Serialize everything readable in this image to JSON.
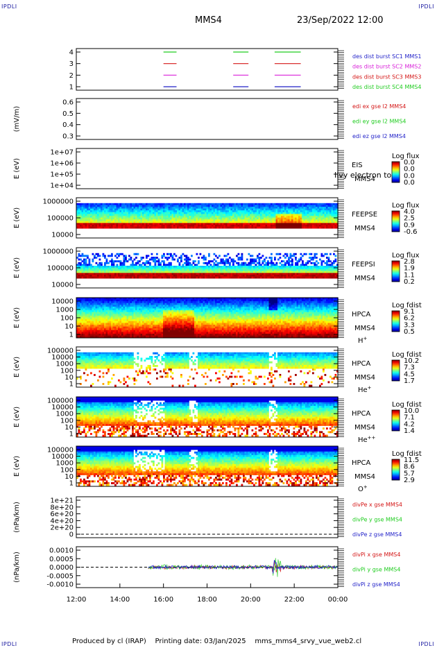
{
  "header": {
    "corner_label": "IPDLI",
    "spacecraft": "MMS4",
    "datetime": "23/Sep/2022 12:00"
  },
  "footer": {
    "produced": "Produced by cl (IRAP)",
    "printing": "Printing date: 03/Jan/2025",
    "file": "mms_mms4_srvy_vue_web2.cl"
  },
  "colors": {
    "mms1": "#1f1fc8",
    "mms2": "#d81fd8",
    "mms3": "#d41515",
    "mms4": "#1fcc1f"
  },
  "chart_data": {
    "type": "multi-panel time series",
    "x": {
      "ticks": [
        "12:00",
        "14:00",
        "16:00",
        "18:00",
        "20:00",
        "22:00",
        "00:00"
      ],
      "hours": [
        12,
        14,
        16,
        18,
        20,
        22,
        24
      ],
      "range_hours": [
        12,
        24
      ]
    },
    "panels": [
      {
        "id": "burst",
        "type": "interval bars",
        "yticks": [
          "4",
          "3",
          "2",
          "1"
        ],
        "ylabel": "",
        "legend": [
          {
            "text": "des dist burst SC1 MMS1",
            "color": "#1f1fc8"
          },
          {
            "text": "des dist burst SC2 MMS2",
            "color": "#d81fd8"
          },
          {
            "text": "des dist burst SC3 MMS3",
            "color": "#d41515"
          },
          {
            "text": "des dist burst SC4 MMS4",
            "color": "#1fcc1f"
          }
        ],
        "intervals_hours": [
          [
            16.0,
            16.6
          ],
          [
            19.2,
            19.9
          ],
          [
            21.1,
            22.3
          ]
        ]
      },
      {
        "id": "edi",
        "type": "line",
        "ylabel": "(mV/m)",
        "yticks": [
          "0.6",
          "0.5",
          "0.4",
          "0.3"
        ],
        "legend": [
          {
            "text": "edi ex gse l2 MMS4",
            "color": "#d41515"
          },
          {
            "text": "edi ey gse l2 MMS4",
            "color": "#1fcc1f"
          },
          {
            "text": "edi ez gse l2 MMS4",
            "color": "#1f1fc8"
          }
        ]
      },
      {
        "id": "eis",
        "type": "spectrogram",
        "ylabel": "E (eV)",
        "yticks": [
          "1e+07",
          "1e+06",
          "1e+05",
          "1e+04"
        ],
        "side": [
          "EIS",
          "MMS4"
        ],
        "overlay": "Ilvy electron to",
        "cbar_title": "Log flux",
        "cbar_ticks": [
          "0.0",
          "0.0",
          "0.0",
          "0.0"
        ]
      },
      {
        "id": "feepse",
        "type": "spectrogram",
        "ylabel": "E (eV)",
        "yticks": [
          "1000000",
          "100000",
          "10000"
        ],
        "side": [
          "FEEPSE",
          "MMS4"
        ],
        "cbar_title": "Log flux",
        "cbar_ticks": [
          "4.0",
          "2.5",
          "0.9",
          "-0.6"
        ]
      },
      {
        "id": "feepsi",
        "type": "spectrogram",
        "ylabel": "E (eV)",
        "yticks": [
          "1000000",
          "100000",
          "10000"
        ],
        "side": [
          "FEEPSI",
          "MMS4"
        ],
        "cbar_title": "Log flux",
        "cbar_ticks": [
          "2.8",
          "1.9",
          "1.1",
          "0.2"
        ]
      },
      {
        "id": "hpca_h",
        "type": "spectrogram",
        "ylabel": "E (eV)",
        "yticks": [
          "10000",
          "1000",
          "100",
          "10",
          "1"
        ],
        "side": [
          "HPCA",
          "MMS4"
        ],
        "species": "H",
        "charge": "+",
        "cbar_title": "Log fdist",
        "cbar_ticks": [
          "9.1",
          "6.2",
          "3.3",
          "0.5"
        ]
      },
      {
        "id": "hpca_he",
        "type": "spectrogram",
        "ylabel": "E (eV)",
        "yticks": [
          "100000",
          "10000",
          "1000",
          "100",
          "10",
          "1"
        ],
        "side": [
          "HPCA",
          "MMS4"
        ],
        "species": "He",
        "charge": "+",
        "cbar_title": "Log fdist",
        "cbar_ticks": [
          "10.2",
          "7.3",
          "4.5",
          "1.7"
        ]
      },
      {
        "id": "hpca_he2",
        "type": "spectrogram",
        "ylabel": "E (eV)",
        "yticks": [
          "100000",
          "10000",
          "1000",
          "100",
          "10",
          "1"
        ],
        "side": [
          "HPCA",
          "MMS4"
        ],
        "species": "He",
        "charge": "++",
        "cbar_title": "Log fdist",
        "cbar_ticks": [
          "10.0",
          "7.1",
          "4.2",
          "1.4"
        ]
      },
      {
        "id": "hpca_o",
        "type": "spectrogram",
        "ylabel": "E (eV)",
        "yticks": [
          "100000",
          "10000",
          "1000",
          "100",
          "10",
          "1"
        ],
        "side": [
          "HPCA",
          "MMS4"
        ],
        "species": "O",
        "charge": "+",
        "cbar_title": "Log fdist",
        "cbar_ticks": [
          "11.5",
          "8.6",
          "5.7",
          "2.9"
        ]
      },
      {
        "id": "divpe",
        "type": "line",
        "ylabel": "(nPa/km)",
        "yticks": [
          "1e+21",
          "8e+20",
          "6e+20",
          "4e+20",
          "2e+20",
          "0"
        ],
        "legend": [
          {
            "text": "divPe x gse MMS4",
            "color": "#d41515"
          },
          {
            "text": "divPe y gse MMS4",
            "color": "#1fcc1f"
          },
          {
            "text": "divPe z gse MMS4",
            "color": "#1f1fc8"
          }
        ]
      },
      {
        "id": "divpi",
        "type": "line",
        "ylabel": "(nPa/km)",
        "yticks": [
          "0.0010",
          "0.0005",
          "0.0000",
          "-0.0005",
          "-0.0010"
        ],
        "ylim": [
          -0.0012,
          0.0012
        ],
        "legend": [
          {
            "text": "divPi x gse MMS4",
            "color": "#d41515"
          },
          {
            "text": "divPi y gse MMS4",
            "color": "#1fcc1f"
          },
          {
            "text": "divPi z gse MMS4",
            "color": "#1f1fc8"
          }
        ]
      }
    ]
  }
}
